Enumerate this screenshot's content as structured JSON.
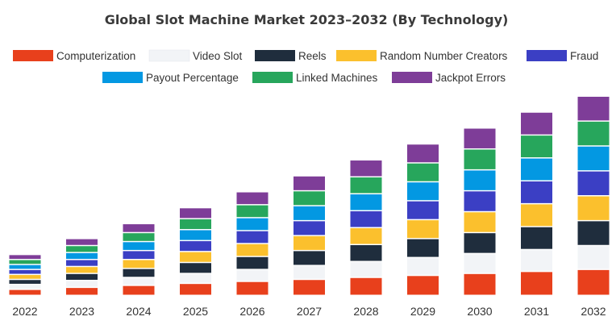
{
  "chart_data": {
    "type": "bar",
    "stacked": true,
    "title": "Global Slot Machine Market 2023–2032 (By Technology)",
    "xlabel": "",
    "ylabel": "",
    "categories": [
      "2022",
      "2023",
      "2024",
      "2025",
      "2026",
      "2027",
      "2028",
      "2029",
      "2030",
      "2031",
      "2032"
    ],
    "grid": false,
    "legend_position": "top",
    "series": [
      {
        "name": "Computerization",
        "color": "#e8401c",
        "values": [
          6,
          8,
          10,
          12,
          14,
          16,
          18,
          20,
          22,
          24,
          26
        ]
      },
      {
        "name": "Video Slot",
        "color": "#f2f4f7",
        "values": [
          5,
          7,
          8,
          10,
          12,
          14,
          16,
          18,
          20,
          22,
          24
        ]
      },
      {
        "name": "Reels",
        "color": "#1f2d3d",
        "values": [
          5,
          7,
          9,
          11,
          13,
          15,
          17,
          19,
          21,
          23,
          25
        ]
      },
      {
        "name": "Random Number Creators",
        "color": "#fbc02d",
        "values": [
          5,
          7,
          9,
          11,
          13,
          15,
          17,
          19,
          21,
          23,
          25
        ]
      },
      {
        "name": "Fraud",
        "color": "#3b3fc4",
        "values": [
          5,
          7,
          9,
          11,
          13,
          15,
          17,
          19,
          21,
          23,
          25
        ]
      },
      {
        "name": "Payout Percentage",
        "color": "#0398e2",
        "values": [
          5,
          7,
          9,
          11,
          13,
          15,
          17,
          19,
          21,
          23,
          25
        ]
      },
      {
        "name": "Linked Machines",
        "color": "#27a65c",
        "values": [
          5,
          7,
          9,
          11,
          13,
          15,
          17,
          19,
          21,
          23,
          25
        ]
      },
      {
        "name": "Jackpot Errors",
        "color": "#7e3d98",
        "values": [
          5,
          7,
          9,
          11,
          13,
          15,
          17,
          19,
          21,
          23,
          25
        ]
      }
    ],
    "ylim": [
      0,
      200
    ]
  }
}
